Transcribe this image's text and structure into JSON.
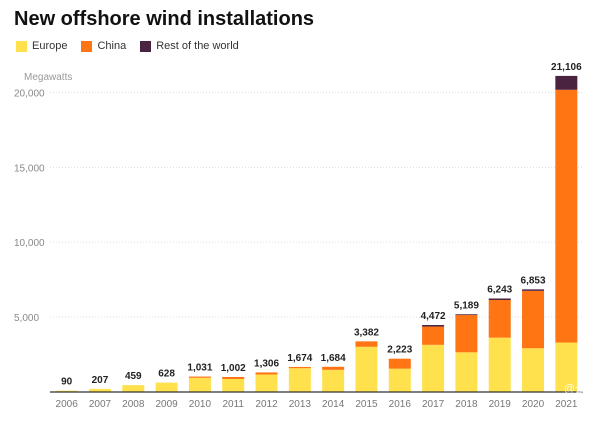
{
  "chart_data": {
    "type": "bar",
    "stacked": true,
    "title": "New offshore wind installations",
    "ylabel": "Megawatts",
    "xlabel": "",
    "categories": [
      "2006",
      "2007",
      "2008",
      "2009",
      "2010",
      "2011",
      "2012",
      "2013",
      "2014",
      "2015",
      "2016",
      "2017",
      "2018",
      "2019",
      "2020",
      "2021"
    ],
    "series": [
      {
        "name": "Europe",
        "color": "#ffe14d",
        "values": [
          90,
          207,
          459,
          628,
          950,
          870,
          1170,
          1590,
          1480,
          3020,
          1560,
          3150,
          2650,
          3630,
          2920,
          3300
        ]
      },
      {
        "name": "China",
        "color": "#ff7413",
        "values": [
          0,
          0,
          0,
          0,
          81,
          132,
          136,
          84,
          204,
          362,
          663,
          1220,
          2489,
          2513,
          3833,
          16880
        ]
      },
      {
        "name": "Rest of the world",
        "color": "#4a2341",
        "values": [
          0,
          0,
          0,
          0,
          0,
          0,
          0,
          0,
          0,
          0,
          0,
          102,
          50,
          100,
          100,
          926
        ]
      }
    ],
    "totals": [
      90,
      207,
      459,
      628,
      1031,
      1002,
      1306,
      1674,
      1684,
      3382,
      2223,
      4472,
      5189,
      6243,
      6853,
      21106
    ],
    "total_labels": [
      "90",
      "207",
      "459",
      "628",
      "1,031",
      "1,002",
      "1,306",
      "1,674",
      "1,684",
      "3,382",
      "2,223",
      "4,472",
      "5,189",
      "6,243",
      "6,853",
      "21,106"
    ],
    "ylim": [
      0,
      21500
    ],
    "yticks": [
      5000,
      10000,
      15000,
      20000
    ],
    "ytick_labels": [
      "5,000",
      "10,000",
      "15,000",
      "20,000"
    ],
    "grid": true,
    "legend": "top-left"
  },
  "watermark": "@云…者"
}
